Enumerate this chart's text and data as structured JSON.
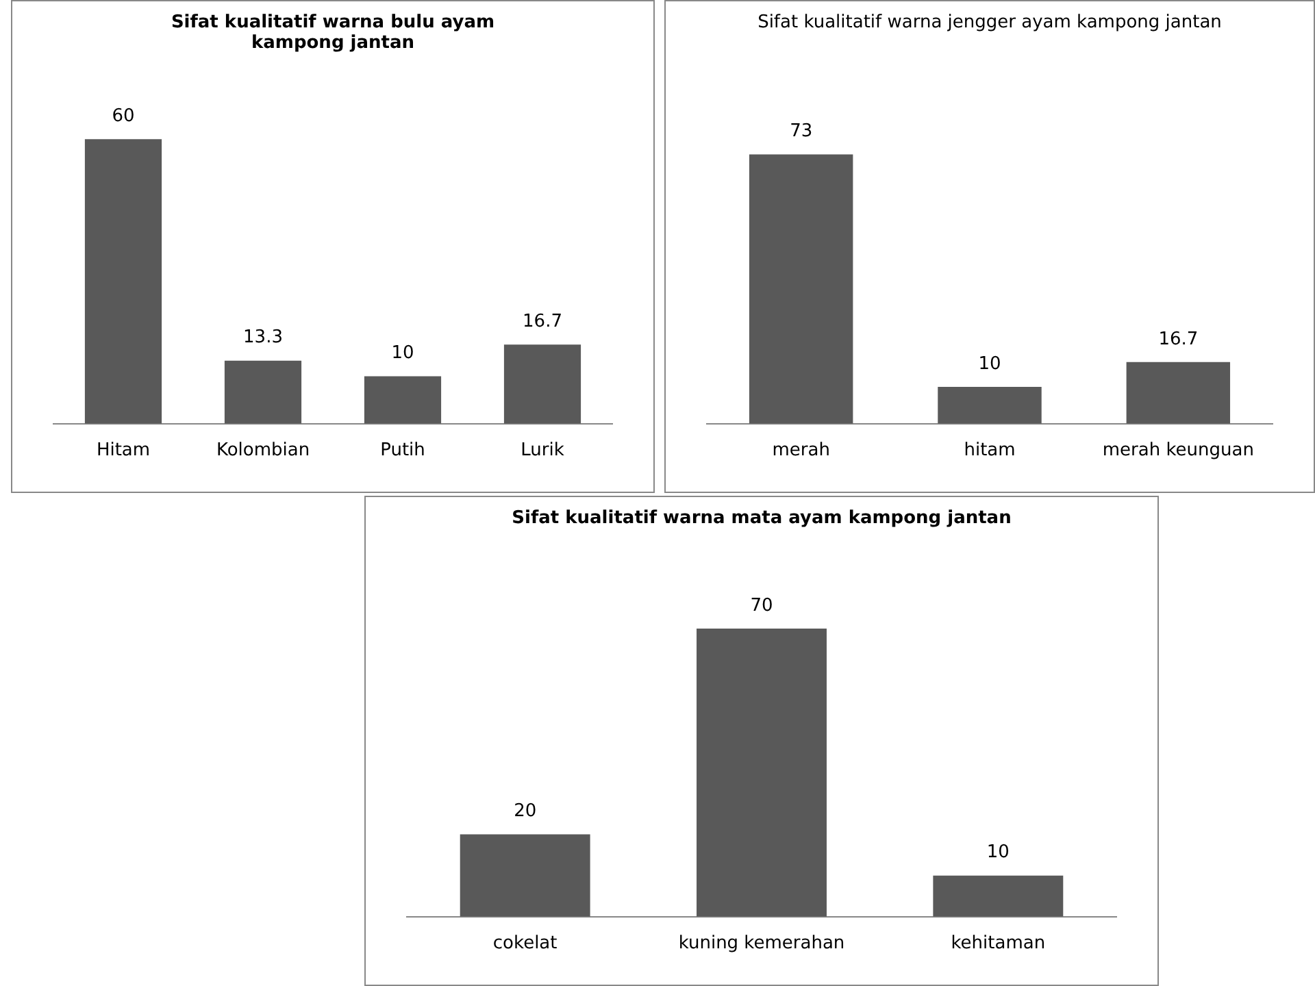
{
  "chart_data": [
    {
      "type": "bar",
      "title": "Sifat kualitatif  warna bulu ayam kampong jantan",
      "categories": [
        "Hitam",
        "Kolombian",
        "Putih",
        "Lurik"
      ],
      "values": [
        60,
        13.3,
        10,
        16.7
      ],
      "color": "#595959",
      "data_labels": true,
      "grid": false,
      "legend": false,
      "tick_labels": "x"
    },
    {
      "type": "bar",
      "title": "Sifat kualitatif warna jengger ayam kampong jantan",
      "categories": [
        "merah",
        "hitam",
        "merah keunguan"
      ],
      "values": [
        73,
        10,
        16.7
      ],
      "color": "#595959",
      "data_labels": true,
      "grid": false,
      "legend": false,
      "tick_labels": "x"
    },
    {
      "type": "bar",
      "title": "Sifat kualitatif warna mata ayam kampong jantan",
      "categories": [
        "cokelat",
        "kuning kemerahan",
        "kehitaman"
      ],
      "values": [
        20,
        70,
        10
      ],
      "color": "#595959",
      "data_labels": true,
      "grid": false,
      "legend": false,
      "tick_labels": "x"
    }
  ]
}
